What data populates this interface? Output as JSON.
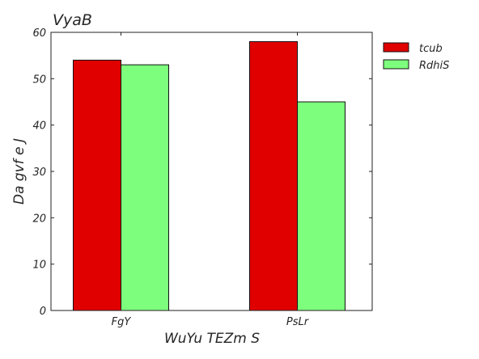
{
  "chart_data": {
    "type": "bar",
    "title": "VyaB",
    "xlabel": "WuYu TEZm S",
    "ylabel": "Da gvf e J",
    "categories": [
      "FgY",
      "PsLr"
    ],
    "series": [
      {
        "name": "tcub",
        "values": [
          54,
          58
        ],
        "color": "#e00000"
      },
      {
        "name": "RdhiS",
        "values": [
          53,
          45
        ],
        "color": "#7dff7d"
      }
    ],
    "ylim": [
      0,
      60
    ],
    "yticks": [
      0,
      10,
      20,
      30,
      40,
      50,
      60
    ],
    "grid": false,
    "legend_position": "outside-top-right"
  }
}
